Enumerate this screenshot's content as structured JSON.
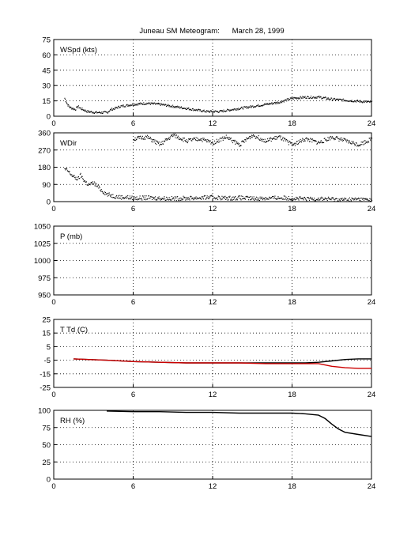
{
  "title": "Juneau SM Meteogram:      March 28, 1999",
  "x_ticks": [
    "0",
    "6",
    "12",
    "18",
    "24"
  ],
  "chart_data": [
    {
      "type": "scatter",
      "label": "WSpd (kts)",
      "xlim": [
        0,
        24
      ],
      "ylim": [
        0,
        75
      ],
      "y_ticks": [
        "0",
        "15",
        "30",
        "45",
        "60",
        "75"
      ],
      "grid": true,
      "series": [
        {
          "color": "#000000",
          "x": [
            0.8,
            1.0,
            1.2,
            1.4,
            1.6,
            1.8,
            2.0,
            2.5,
            3.2,
            4.0,
            4.3,
            4.6,
            5.0,
            5.5,
            6.0,
            7.0,
            8.0,
            9.0,
            10.0,
            11.0,
            11.5,
            12.0,
            12.5,
            13.0,
            14.0,
            15.0,
            16.0,
            17.0,
            18.0,
            19.0,
            20.0,
            21.0,
            22.0,
            23.0,
            24.0
          ],
          "y": [
            18,
            12,
            9,
            8,
            7,
            10,
            8,
            5,
            4,
            4,
            7,
            8,
            10,
            11,
            12,
            13,
            12,
            10,
            8,
            6,
            5,
            5,
            5,
            6,
            8,
            10,
            12,
            14,
            18,
            19,
            19,
            17,
            16,
            15,
            14
          ]
        }
      ]
    },
    {
      "type": "scatter",
      "label": "WDir",
      "xlim": [
        0,
        24
      ],
      "ylim": [
        0,
        360
      ],
      "y_ticks": [
        "0",
        "90",
        "180",
        "270",
        "360"
      ],
      "grid": true,
      "series": [
        {
          "color": "#000000",
          "x": [
            0.8,
            1.0,
            1.2,
            1.5,
            1.8,
            2.0,
            2.3,
            2.6,
            3.0,
            3.3,
            3.6,
            4.0,
            4.3,
            4.6,
            5.0,
            5.5,
            6.0,
            7.0,
            8.0,
            9.0,
            10.0,
            11.0,
            12.0,
            13.0,
            14.0,
            15.0,
            16.0,
            17.0,
            18.0,
            19.0,
            20.0,
            21.0,
            22.0,
            23.0,
            24.0
          ],
          "y": [
            170,
            165,
            150,
            130,
            120,
            140,
            110,
            90,
            100,
            80,
            60,
            40,
            35,
            30,
            25,
            25,
            20,
            22,
            20,
            18,
            20,
            22,
            25,
            20,
            22,
            18,
            20,
            22,
            20,
            15,
            18,
            15,
            12,
            15,
            10
          ]
        },
        {
          "color": "#000000",
          "x": [
            6.0,
            7.0,
            8.0,
            9.0,
            10.0,
            11.0,
            12.0,
            13.0,
            14.0,
            15.0,
            16.0,
            17.0,
            18.0,
            19.0,
            20.0,
            21.0,
            22.0,
            23.0,
            24.0
          ],
          "y": [
            330,
            340,
            300,
            350,
            320,
            330,
            310,
            340,
            300,
            350,
            320,
            340,
            300,
            330,
            310,
            340,
            320,
            300,
            330
          ]
        }
      ]
    },
    {
      "type": "line",
      "label": "P (mb)",
      "xlim": [
        0,
        24
      ],
      "ylim": [
        950,
        1050
      ],
      "y_ticks": [
        "950",
        "975",
        "1000",
        "1025",
        "1050"
      ],
      "grid": true,
      "series": []
    },
    {
      "type": "line",
      "label": "T Td (C)",
      "xlim": [
        0,
        24
      ],
      "ylim": [
        -25,
        25
      ],
      "y_ticks": [
        "-25",
        "-15",
        "-5",
        "5",
        "15",
        "25"
      ],
      "grid": true,
      "series": [
        {
          "color": "#000000",
          "x": [
            1.5,
            4.0,
            6.0,
            8.0,
            10.0,
            12.0,
            14.0,
            16.0,
            18.0,
            19.0,
            20.0,
            21.0,
            22.0,
            23.0,
            24.0
          ],
          "y": [
            -4,
            -5,
            -6,
            -6.5,
            -7,
            -7,
            -7,
            -7,
            -7,
            -7,
            -6.5,
            -5.5,
            -4.5,
            -4,
            -4
          ]
        },
        {
          "color": "#cc0000",
          "x": [
            1.5,
            4.0,
            6.0,
            8.0,
            10.0,
            12.0,
            14.0,
            16.0,
            18.0,
            19.0,
            20.0,
            21.0,
            22.0,
            23.0,
            24.0
          ],
          "y": [
            -4,
            -5,
            -6,
            -6.5,
            -7,
            -7,
            -7,
            -7.5,
            -7.5,
            -7.5,
            -7.5,
            -9.5,
            -10.5,
            -11,
            -11
          ]
        }
      ]
    },
    {
      "type": "line",
      "label": "RH (%)",
      "xlim": [
        0,
        24
      ],
      "ylim": [
        0,
        100
      ],
      "y_ticks": [
        "0",
        "25",
        "50",
        "75",
        "100"
      ],
      "grid": true,
      "series": [
        {
          "color": "#000000",
          "x": [
            4.0,
            6.0,
            8.0,
            10.0,
            12.0,
            14.0,
            16.0,
            18.0,
            19.0,
            20.0,
            20.5,
            21.0,
            21.5,
            22.0,
            23.0,
            24.0
          ],
          "y": [
            99,
            98,
            98,
            97,
            97,
            96,
            96,
            96,
            95,
            93,
            88,
            80,
            73,
            68,
            65,
            62
          ]
        }
      ]
    }
  ]
}
